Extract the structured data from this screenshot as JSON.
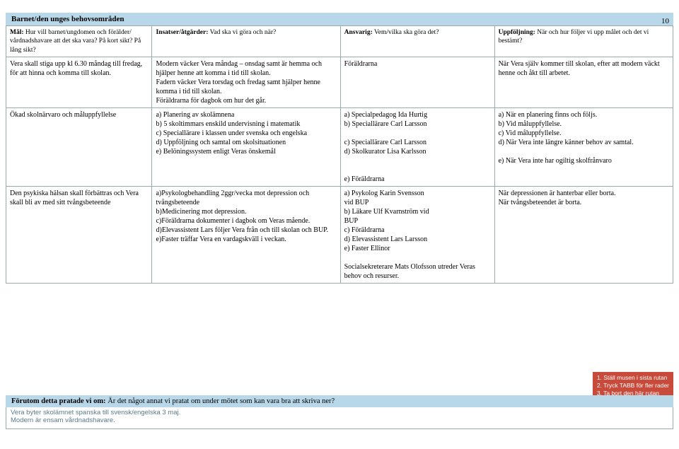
{
  "page_number": "10",
  "section_title": "Barnet/den unges behovsområden",
  "header_row": {
    "c1": "Mål: Hur vill barnet/ungdomen och förälder/ vårdnadshavare att det ska vara? På kort sikt? På lång sikt?",
    "c2": "Insatser/åtgärder: Vad ska vi göra och när?",
    "c3": "Ansvarig: Vem/vilka ska göra det?",
    "c4": "Uppföljning: När och hur följer vi upp målet och det vi bestämt?"
  },
  "row1": {
    "c1": "Vera skall stiga upp kl 6.30 måndag till fredag, för att hinna och komma till skolan.",
    "c2": "Modern väcker Vera måndag – onsdag samt är hemma och hjälper henne att komma i tid till skolan.\nFadern väcker Vera torsdag och fredag samt hjälper henne komma i tid till skolan.\nFöräldrarna för dagbok om hur det går.",
    "c3": "Föräldrarna",
    "c4": "När Vera själv kommer till skolan, efter att modern väckt henne och åkt till arbetet."
  },
  "row2": {
    "c1": "Ökad skolnärvaro och måluppfyllelse",
    "c2": "a) Planering av skolämnena\nb) 5 skoltimmars enskild undervisning i matematik\nc) Speciallärare i klassen under svenska och engelska\nd) Uppföljning och samtal om skolsituationen\ne) Belöningssystem enligt Veras önskemål",
    "c3": "a) Specialpedagog Ida Hurtig\nb) Speciallärare Carl Larsson\n\nc) Speciallärare Carl Larsson\nd) Skolkurator Lisa Karlsson\n\n\ne) Föräldrarna",
    "c4": "a) När en planering finns och följs.\nb) Vid måluppfyllelse.\nc) Vid måluppfyllelse.\nd) När Vera inte längre känner behov av samtal.\n\ne) När Vera inte har ogiltig skolfrånvaro"
  },
  "row3": {
    "c1": "Den psykiska hälsan skall förbättras och Vera skall bli av med sitt tvångsbeteende",
    "c2": "a)Psykologbehandling 2ggr/vecka mot depression och tvångsbeteende\nb)Medicinering mot depression.\nc)Föräldrarna dokumenter i dagbok om Veras mående.\nd)Elevassistent Lars följer Vera från och till skolan och BUP.\ne)Faster träffar Vera en vardagskväll i veckan.",
    "c3": "a) Psykolog Karin Svensson\n    vid BUP\nb) Läkare Ulf Kvarnström vid\n    BUP\nc) Föräldrarna\nd) Elevassistent Lars Larsson\ne) Faster Ellinor\n\nSocialsekreterare Mats Olofsson utreder Veras behov och resurser.",
    "c4": "När depressionen är hanterbar eller borta.\nNär tvångsbeteendet är borta."
  },
  "hint": {
    "l1": "1. Ställ musen i sista rutan",
    "l2": "2. Tryck TABB för fler rader",
    "l3": "3. Ta bort den här rutan"
  },
  "footer": {
    "title_bold": "Förutom detta pratade vi om:",
    "title_rest": " Är det något annat vi pratat om under mötet som kan vara bra att skriva ner?",
    "line1": "Vera byter skolämnet spanska till svensk/engelska 3 maj.",
    "line2": "Modern är ensam vårdnadshavare."
  }
}
